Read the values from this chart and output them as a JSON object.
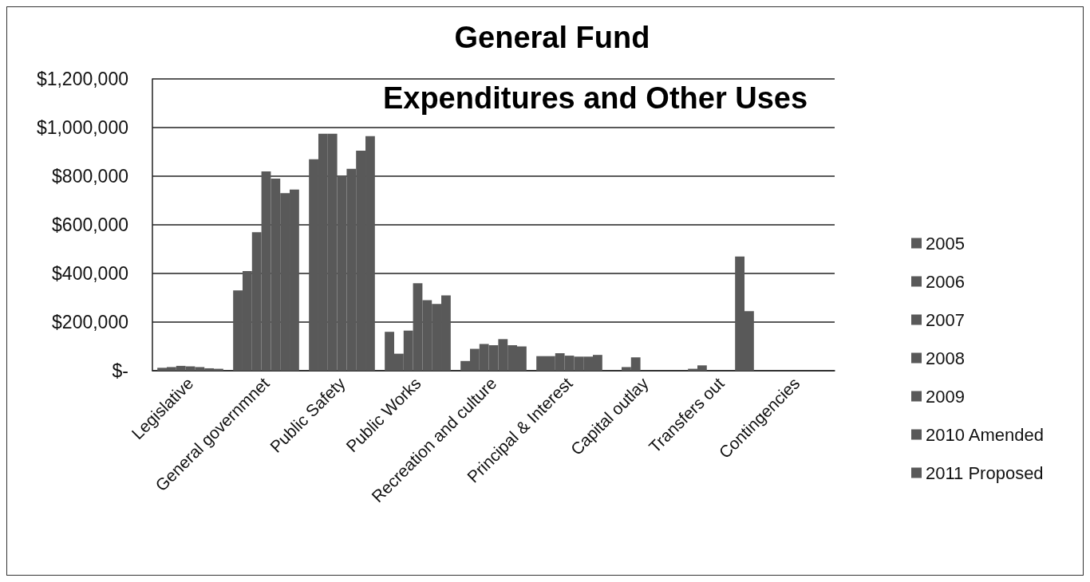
{
  "chart_data": {
    "type": "bar",
    "title": "General Fund",
    "subtitle": "Expenditures and Other Uses",
    "categories": [
      "Legislative",
      "General governmnet",
      "Public Safety",
      "Public Works",
      "Recreation and culture",
      "Principal & Interest",
      "Capital outlay",
      "Transfers out",
      "Contingencies"
    ],
    "series": [
      {
        "name": "2005",
        "color": "#595959",
        "values": [
          12000,
          330000,
          870000,
          160000,
          40000,
          60000,
          0,
          8000,
          0
        ]
      },
      {
        "name": "2006",
        "color": "#595959",
        "values": [
          15000,
          410000,
          975000,
          70000,
          90000,
          60000,
          15000,
          22000,
          0
        ]
      },
      {
        "name": "2007",
        "color": "#595959",
        "values": [
          20000,
          570000,
          975000,
          165000,
          110000,
          72000,
          55000,
          0,
          0
        ]
      },
      {
        "name": "2008",
        "color": "#595959",
        "values": [
          18000,
          820000,
          800000,
          360000,
          105000,
          62000,
          0,
          0,
          0
        ]
      },
      {
        "name": "2009",
        "color": "#595959",
        "values": [
          15000,
          790000,
          830000,
          290000,
          130000,
          58000,
          0,
          0,
          0
        ]
      },
      {
        "name": "2010 Amended",
        "color": "#595959",
        "values": [
          10000,
          730000,
          905000,
          275000,
          105000,
          58000,
          0,
          470000,
          0
        ]
      },
      {
        "name": "2011 Proposed",
        "color": "#595959",
        "values": [
          8000,
          745000,
          965000,
          310000,
          100000,
          65000,
          0,
          245000,
          0
        ]
      }
    ],
    "ylim": [
      0,
      1200000
    ],
    "yticks": [
      {
        "value": 0,
        "label": "$-"
      },
      {
        "value": 200000,
        "label": "$200,000"
      },
      {
        "value": 400000,
        "label": "$400,000"
      },
      {
        "value": 600000,
        "label": "$600,000"
      },
      {
        "value": 800000,
        "label": "$800,000"
      },
      {
        "value": 1000000,
        "label": "$1,000,000"
      },
      {
        "value": 1200000,
        "label": "$1,200,000"
      }
    ],
    "grid": "y",
    "legend": "right"
  }
}
